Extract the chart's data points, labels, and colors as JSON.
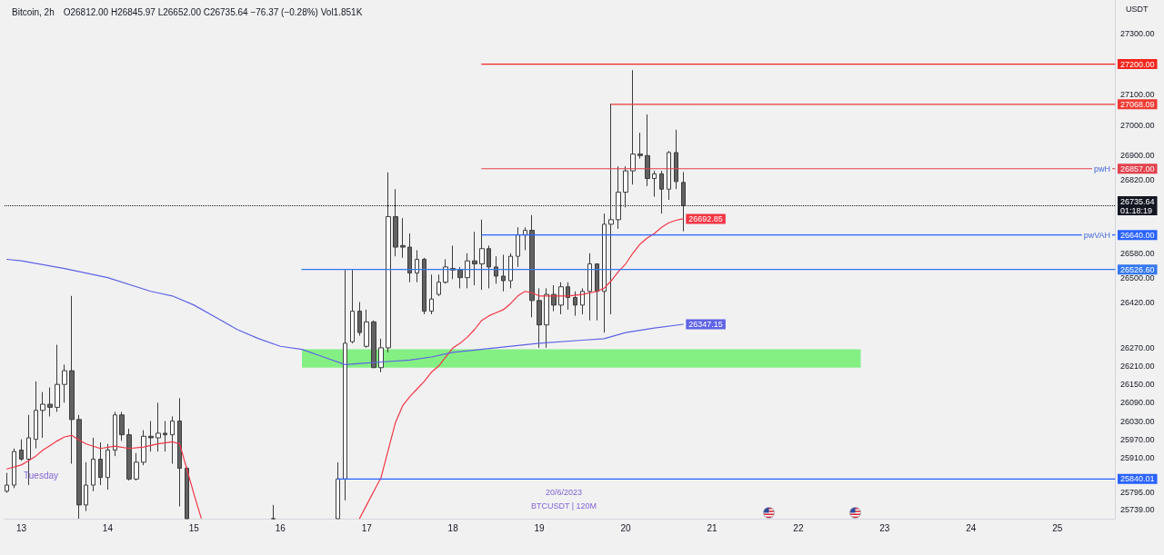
{
  "chart_data": {
    "type": "candlestick",
    "title": "Bitcoin, 2h",
    "subtitle": "O26812.00 H26845.97 L26652.00 C26735.64 −76.37 (−0.28%) Vol1.851K",
    "ylabel": "USDT",
    "x": [
      "2023-06-12T20:00",
      "2023-06-12T22:00",
      "2023-06-13T00:00",
      "2023-06-13T02:00",
      "2023-06-13T04:00",
      "2023-06-13T06:00",
      "2023-06-13T08:00",
      "2023-06-13T10:00",
      "2023-06-13T12:00",
      "2023-06-13T14:00",
      "2023-06-13T16:00",
      "2023-06-13T18:00",
      "2023-06-13T20:00",
      "2023-06-13T22:00",
      "2023-06-14T00:00",
      "2023-06-14T02:00",
      "2023-06-14T04:00",
      "2023-06-14T06:00",
      "2023-06-14T08:00",
      "2023-06-14T10:00",
      "2023-06-14T12:00",
      "2023-06-14T14:00",
      "2023-06-14T16:00",
      "2023-06-14T18:00",
      "2023-06-14T20:00",
      "2023-06-14T22:00",
      "2023-06-15T22:00",
      "2023-06-16T16:00",
      "2023-06-16T18:00",
      "2023-06-16T20:00",
      "2023-06-16T22:00",
      "2023-06-17T00:00",
      "2023-06-17T02:00",
      "2023-06-17T04:00",
      "2023-06-17T06:00",
      "2023-06-17T08:00",
      "2023-06-17T10:00",
      "2023-06-17T12:00",
      "2023-06-17T14:00",
      "2023-06-17T16:00",
      "2023-06-17T18:00",
      "2023-06-17T20:00",
      "2023-06-17T22:00",
      "2023-06-18T00:00",
      "2023-06-18T02:00",
      "2023-06-18T04:00",
      "2023-06-18T06:00",
      "2023-06-18T08:00",
      "2023-06-18T10:00",
      "2023-06-18T12:00",
      "2023-06-18T14:00",
      "2023-06-18T16:00",
      "2023-06-18T18:00",
      "2023-06-18T20:00",
      "2023-06-18T22:00",
      "2023-06-19T00:00",
      "2023-06-19T02:00",
      "2023-06-19T04:00",
      "2023-06-19T06:00",
      "2023-06-19T08:00",
      "2023-06-19T10:00",
      "2023-06-19T12:00",
      "2023-06-19T14:00",
      "2023-06-19T16:00",
      "2023-06-19T18:00",
      "2023-06-19T20:00",
      "2023-06-19T22:00",
      "2023-06-20T00:00",
      "2023-06-20T02:00",
      "2023-06-20T04:00",
      "2023-06-20T06:00",
      "2023-06-20T08:00",
      "2023-06-20T10:00",
      "2023-06-20T12:00",
      "2023-06-20T14:00",
      "2023-06-20T16:00"
    ],
    "ohlc": [
      [
        25800,
        25860,
        25795,
        25820
      ],
      [
        25820,
        25940,
        25810,
        25930
      ],
      [
        25935,
        25970,
        25900,
        25905
      ],
      [
        25905,
        26050,
        25820,
        25975
      ],
      [
        25970,
        26160,
        25940,
        26065
      ],
      [
        26065,
        26125,
        25975,
        26085
      ],
      [
        26085,
        26140,
        26045,
        26075
      ],
      [
        26075,
        26280,
        26060,
        26150
      ],
      [
        26150,
        26215,
        26090,
        26195
      ],
      [
        26195,
        26440,
        25890,
        26035
      ],
      [
        26035,
        26050,
        25710,
        25755
      ],
      [
        25755,
        25895,
        25735,
        25820
      ],
      [
        25820,
        25975,
        25800,
        25905
      ],
      [
        25905,
        25960,
        25820,
        25845
      ],
      [
        25845,
        25955,
        25805,
        25935
      ],
      [
        25935,
        26060,
        25915,
        26050
      ],
      [
        26050,
        26060,
        25965,
        25985
      ],
      [
        25985,
        26005,
        25835,
        25840
      ],
      [
        25840,
        25925,
        25835,
        25895
      ],
      [
        25895,
        26000,
        25885,
        25980
      ],
      [
        25980,
        26030,
        25930,
        25975
      ],
      [
        25975,
        26090,
        25930,
        25990
      ],
      [
        25990,
        26030,
        25930,
        25985
      ],
      [
        25985,
        26045,
        25890,
        26030
      ],
      [
        26030,
        26105,
        25750,
        25875
      ],
      [
        25875,
        25880,
        25710,
        25710
      ],
      [
        25710,
        25755,
        25710,
        25710
      ],
      [
        25710,
        25895,
        25710,
        25840
      ],
      [
        25840,
        26525,
        25770,
        26285
      ],
      [
        26290,
        26525,
        26285,
        26390
      ],
      [
        26390,
        26420,
        26310,
        26320
      ],
      [
        26275,
        26395,
        26270,
        26355
      ],
      [
        26355,
        26360,
        26205,
        26205
      ],
      [
        26205,
        26300,
        26190,
        26270
      ],
      [
        26270,
        26845,
        26255,
        26700
      ],
      [
        26700,
        26790,
        26570,
        26600
      ],
      [
        26605,
        26695,
        26565,
        26600
      ],
      [
        26600,
        26645,
        26485,
        26515
      ],
      [
        26515,
        26590,
        26485,
        26560
      ],
      [
        26560,
        26565,
        26380,
        26390
      ],
      [
        26390,
        26510,
        26380,
        26430
      ],
      [
        26445,
        26510,
        26440,
        26485
      ],
      [
        26485,
        26560,
        26480,
        26535
      ],
      [
        26530,
        26605,
        26495,
        26525
      ],
      [
        26525,
        26535,
        26465,
        26500
      ],
      [
        26500,
        26580,
        26465,
        26555
      ],
      [
        26555,
        26650,
        26475,
        26545
      ],
      [
        26545,
        26690,
        26460,
        26595
      ],
      [
        26595,
        26605,
        26465,
        26535
      ],
      [
        26535,
        26570,
        26480,
        26505
      ],
      [
        26505,
        26575,
        26455,
        26490
      ],
      [
        26490,
        26580,
        26465,
        26570
      ],
      [
        26570,
        26665,
        26535,
        26640
      ],
      [
        26640,
        26665,
        26590,
        26655
      ],
      [
        26655,
        26705,
        26370,
        26425
      ],
      [
        26425,
        26465,
        26270,
        26345
      ],
      [
        26345,
        26465,
        26270,
        26445
      ],
      [
        26445,
        26475,
        26390,
        26410
      ],
      [
        26410,
        26485,
        26380,
        26470
      ],
      [
        26470,
        26485,
        26395,
        26435
      ],
      [
        26435,
        26455,
        26375,
        26410
      ],
      [
        26410,
        26465,
        26380,
        26455
      ],
      [
        26455,
        26580,
        26360,
        26545
      ],
      [
        26545,
        26545,
        26360,
        26455
      ],
      [
        26455,
        26710,
        26320,
        26675
      ],
      [
        26675,
        27070,
        26380,
        26690
      ],
      [
        26690,
        26865,
        26660,
        26780
      ],
      [
        26780,
        26865,
        26730,
        26850
      ],
      [
        26850,
        27180,
        26805,
        26905
      ],
      [
        26905,
        26975,
        26890,
        26900
      ],
      [
        26900,
        27035,
        26800,
        26825
      ],
      [
        26825,
        26850,
        26765,
        26840
      ],
      [
        26840,
        26850,
        26710,
        26790
      ],
      [
        26790,
        26915,
        26755,
        26910
      ],
      [
        26910,
        26985,
        26790,
        26815
      ],
      [
        26812.0,
        26845.97,
        26652.0,
        26735.64
      ]
    ],
    "series": [
      {
        "type": "line",
        "x": [
          "2023-06-16T06:00",
          "2023-06-22T17:20"
        ],
        "values": [
          null,
          null
        ],
        "lower": [
          26205,
          26205
        ],
        "upper": [
          26265,
          26265
        ],
        "color": "#84f084"
      },
      {
        "type": "line",
        "x": [
          "2023-06-12T20:00",
          "2023-06-13T00:00",
          "2023-06-13T02:00",
          "2023-06-13T04:00",
          "2023-06-13T06:00",
          "2023-06-13T08:00",
          "2023-06-13T10:00",
          "2023-06-13T12:00",
          "2023-06-13T14:00",
          "2023-06-13T16:00",
          "2023-06-13T18:00",
          "2023-06-13T22:00",
          "2023-06-14T02:00",
          "2023-06-14T06:00",
          "2023-06-14T10:00",
          "2023-06-14T14:00",
          "2023-06-14T18:00",
          "2023-06-14T20:00",
          "2023-06-14T22:00",
          "2023-06-15T00:00",
          "2023-06-15T02:00",
          "2023-06-16T00:00",
          "2023-06-16T22:00",
          "2023-06-17T00:00",
          "2023-06-17T02:00",
          "2023-06-17T04:00",
          "2023-06-17T06:00",
          "2023-06-17T08:00",
          "2023-06-17T10:00",
          "2023-06-17T12:00",
          "2023-06-17T14:00",
          "2023-06-17T16:00",
          "2023-06-17T18:00",
          "2023-06-17T20:00",
          "2023-06-17T22:00",
          "2023-06-18T00:00",
          "2023-06-18T02:00",
          "2023-06-18T04:00",
          "2023-06-18T06:00",
          "2023-06-18T08:00",
          "2023-06-18T10:00",
          "2023-06-18T12:00",
          "2023-06-18T14:00",
          "2023-06-18T16:00",
          "2023-06-18T18:00",
          "2023-06-18T20:00",
          "2023-06-18T22:00",
          "2023-06-19T00:00",
          "2023-06-19T04:00",
          "2023-06-19T08:00",
          "2023-06-19T12:00",
          "2023-06-19T16:00",
          "2023-06-19T18:00",
          "2023-06-19T20:00",
          "2023-06-19T22:00",
          "2023-06-20T00:00",
          "2023-06-20T02:00",
          "2023-06-20T04:00",
          "2023-06-20T06:00",
          "2023-06-20T08:00",
          "2023-06-20T10:00",
          "2023-06-20T12:00",
          "2023-06-20T14:00",
          "2023-06-20T16:00"
        ],
        "values": [
          25873,
          25886,
          25900,
          25915,
          25935,
          25950,
          25965,
          25978,
          25983,
          25968,
          25955,
          25940,
          25948,
          25940,
          25945,
          25955,
          25962,
          25955,
          25873,
          25790,
          25712,
          null,
          25710,
          25755,
          25800,
          25845,
          25935,
          26025,
          26080,
          26110,
          26135,
          26160,
          26190,
          26210,
          26240,
          26270,
          26285,
          26305,
          26330,
          26360,
          26375,
          26385,
          26395,
          26415,
          26440,
          26455,
          26450,
          26440,
          26440,
          26440,
          26445,
          26455,
          26465,
          26490,
          26520,
          26545,
          26580,
          26610,
          26630,
          26645,
          26665,
          26680,
          26688,
          26692.85
        ],
        "value_labels": [
          null,
          null,
          null,
          null,
          null,
          null,
          null,
          null,
          null,
          null,
          null,
          null,
          null,
          null,
          null,
          null,
          null,
          null,
          null,
          null,
          null,
          null,
          null,
          null,
          null,
          null,
          null,
          null,
          null,
          null,
          null,
          null,
          null,
          null,
          null,
          null,
          null,
          null,
          null,
          null,
          null,
          null,
          null,
          null,
          null,
          null,
          null,
          null,
          null,
          null,
          null,
          null,
          null,
          null,
          null,
          null,
          null,
          null,
          null,
          null,
          null,
          null,
          null,
          "26692.85"
        ],
        "color": "#f23645"
      },
      {
        "type": "line",
        "x": [
          "2023-06-12T20:00",
          "2023-06-13T00:00",
          "2023-06-13T12:00",
          "2023-06-14T00:00",
          "2023-06-14T12:00",
          "2023-06-14T18:00",
          "2023-06-15T00:00",
          "2023-06-15T06:00",
          "2023-06-15T12:00",
          "2023-06-15T18:00",
          "2023-06-16T00:00",
          "2023-06-16T06:00",
          "2023-06-16T12:00",
          "2023-06-16T18:00",
          "2023-06-17T00:00",
          "2023-06-17T06:00",
          "2023-06-17T12:00",
          "2023-06-17T18:00",
          "2023-06-18T00:00",
          "2023-06-18T12:00",
          "2023-06-19T00:00",
          "2023-06-19T12:00",
          "2023-06-19T18:00",
          "2023-06-20T00:00",
          "2023-06-20T08:00",
          "2023-06-20T16:00"
        ],
        "values": [
          26560,
          26555,
          26530,
          26500,
          26455,
          26440,
          26410,
          26370,
          26330,
          26300,
          26275,
          26265,
          26240,
          26215,
          26220,
          26225,
          26230,
          26240,
          26255,
          26270,
          26285,
          26295,
          26300,
          26320,
          26335,
          26347.15
        ],
        "value_labels": [
          null,
          null,
          null,
          null,
          null,
          null,
          null,
          null,
          null,
          null,
          null,
          null,
          null,
          null,
          null,
          null,
          null,
          null,
          null,
          null,
          null,
          null,
          null,
          null,
          null,
          "26347.15"
        ],
        "color": "#5f63e4"
      },
      {
        "type": "line",
        "x": [
          "2023-06-18T08:00",
          "2023-06-25T16:00"
        ],
        "values": [
          27200,
          27200
        ],
        "value_labels": [
          null,
          "27200.00"
        ],
        "color": "#f2261d"
      },
      {
        "type": "line",
        "x": [
          "2023-06-19T20:00",
          "2023-06-25T16:00"
        ],
        "values": [
          27068.09,
          27068.09
        ],
        "value_labels": [
          null,
          "27068.09"
        ],
        "color": "#ee3a33"
      },
      {
        "type": "line",
        "name": "pwH",
        "x": [
          "2023-06-18T08:00",
          "2023-06-25T16:00"
        ],
        "values": [
          26857,
          26857
        ],
        "value_labels": [
          null,
          "26857.00"
        ],
        "color": "#e2414c"
      },
      {
        "type": "line",
        "name": "pwVAH",
        "x": [
          "2023-06-18T08:00",
          "2023-06-25T16:00"
        ],
        "values": [
          26640,
          26640
        ],
        "value_labels": [
          null,
          "26640.00"
        ],
        "color": "#2962ff"
      },
      {
        "type": "line",
        "x": [
          "2023-06-16T06:00",
          "2023-06-25T16:00"
        ],
        "values": [
          26526.6,
          26526.6
        ],
        "value_labels": [
          null,
          "26526.60"
        ],
        "color": "#3478f0"
      },
      {
        "type": "line",
        "x": [
          "2023-06-16T16:00",
          "2023-06-25T16:00"
        ],
        "values": [
          25840.01,
          25840.01
        ],
        "value_labels": [
          null,
          "25840.01"
        ],
        "color": "#2962ff"
      }
    ],
    "ref_lines": [
      {
        "axis": "y",
        "value": 26735.64,
        "label": "26735.64\n01:18:19",
        "color": "#131722",
        "line_style": "dotted"
      }
    ],
    "annotations": [
      "Tuesday",
      "20/6/2023",
      "BTCUSDT | 120M"
    ],
    "legend": "right",
    "marker": "none",
    "xlim": [
      "2023-06-12T19:20",
      "2023-06-25T16:00"
    ],
    "xticks": [
      {
        "value": "2023-06-13T00:00",
        "label": "13"
      },
      {
        "value": "2023-06-14T00:00",
        "label": "14"
      },
      {
        "value": "2023-06-15T00:00",
        "label": "15"
      },
      {
        "value": "2023-06-16T00:00",
        "label": "16"
      },
      {
        "value": "2023-06-17T00:00",
        "label": "17"
      },
      {
        "value": "2023-06-18T00:00",
        "label": "18"
      },
      {
        "value": "2023-06-19T00:00",
        "label": "19"
      },
      {
        "value": "2023-06-20T00:00",
        "label": "20"
      },
      {
        "value": "2023-06-21T00:00",
        "label": "21"
      },
      {
        "value": "2023-06-22T00:00",
        "label": "22"
      },
      {
        "value": "2023-06-23T00:00",
        "label": "23"
      },
      {
        "value": "2023-06-24T00:00",
        "label": "24"
      },
      {
        "value": "2023-06-25T00:00",
        "label": "25"
      }
    ],
    "ylim": [
      25710,
      27410
    ],
    "yticks": [
      {
        "value": 27300,
        "label": "27300.00"
      },
      {
        "value": 27100,
        "label": "27100.00"
      },
      {
        "value": 27000,
        "label": "27000.00"
      },
      {
        "value": 26900,
        "label": "26900.00"
      },
      {
        "value": 26820,
        "label": "26820.00"
      },
      {
        "value": 26580,
        "label": "26580.00"
      },
      {
        "value": 26500,
        "label": "26500.00"
      },
      {
        "value": 26420,
        "label": "26420.00"
      },
      {
        "value": 26270,
        "label": "26270.00"
      },
      {
        "value": 26210,
        "label": "26210.00"
      },
      {
        "value": 26150,
        "label": "26150.00"
      },
      {
        "value": 26090,
        "label": "26090.00"
      },
      {
        "value": 26030,
        "label": "26030.00"
      },
      {
        "value": 25970,
        "label": "25970.00"
      },
      {
        "value": 25910,
        "label": "25910.00"
      },
      {
        "value": 25795,
        "label": "25795.00"
      },
      {
        "value": 25739,
        "label": "25739.00"
      }
    ]
  }
}
